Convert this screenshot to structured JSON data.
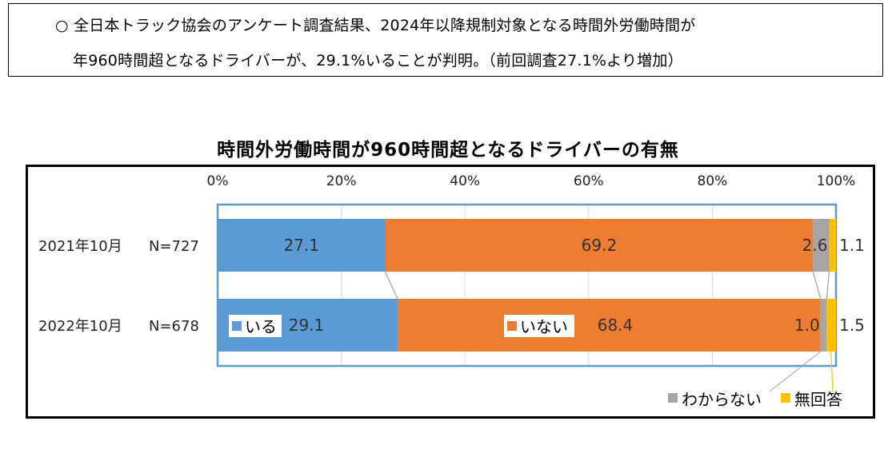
{
  "summary": {
    "line1": "○ 全日本トラック協会のアンケート調査結果、2024年以降規制対象となる時間外労働時間が",
    "line2": "年960時間超となるドライバーが、29.1%いることが判明。（前回調査27.1%より増加）"
  },
  "chart_data": {
    "type": "bar",
    "orientation": "horizontal-stacked-100",
    "title": "時間外労働時間が960時間超となるドライバーの有無",
    "xlim": [
      0,
      100
    ],
    "x_ticks": [
      "0%",
      "20%",
      "40%",
      "60%",
      "80%",
      "100%"
    ],
    "categories": [
      {
        "label": "2021年10月",
        "n": "N=727"
      },
      {
        "label": "2022年10月",
        "n": "N=678"
      }
    ],
    "series": [
      {
        "name": "いる",
        "color": "#5B9BD5",
        "values": [
          27.1,
          29.1
        ],
        "labels": [
          "27.1",
          "29.1"
        ]
      },
      {
        "name": "いない",
        "color": "#ED7D31",
        "values": [
          69.2,
          68.4
        ],
        "labels": [
          "69.2",
          "68.4"
        ]
      },
      {
        "name": "わからない",
        "color": "#A5A5A5",
        "values": [
          2.6,
          1.0
        ],
        "labels": [
          "2.6",
          "1.0"
        ]
      },
      {
        "name": "無回答",
        "color": "#FFC000",
        "values": [
          1.1,
          1.5
        ],
        "labels": [
          "1.1",
          "1.5"
        ]
      }
    ],
    "grid": true,
    "plot_border_color": "#5B9BD5",
    "gridline_color": "#D9D9D9",
    "connector_lines": true
  }
}
